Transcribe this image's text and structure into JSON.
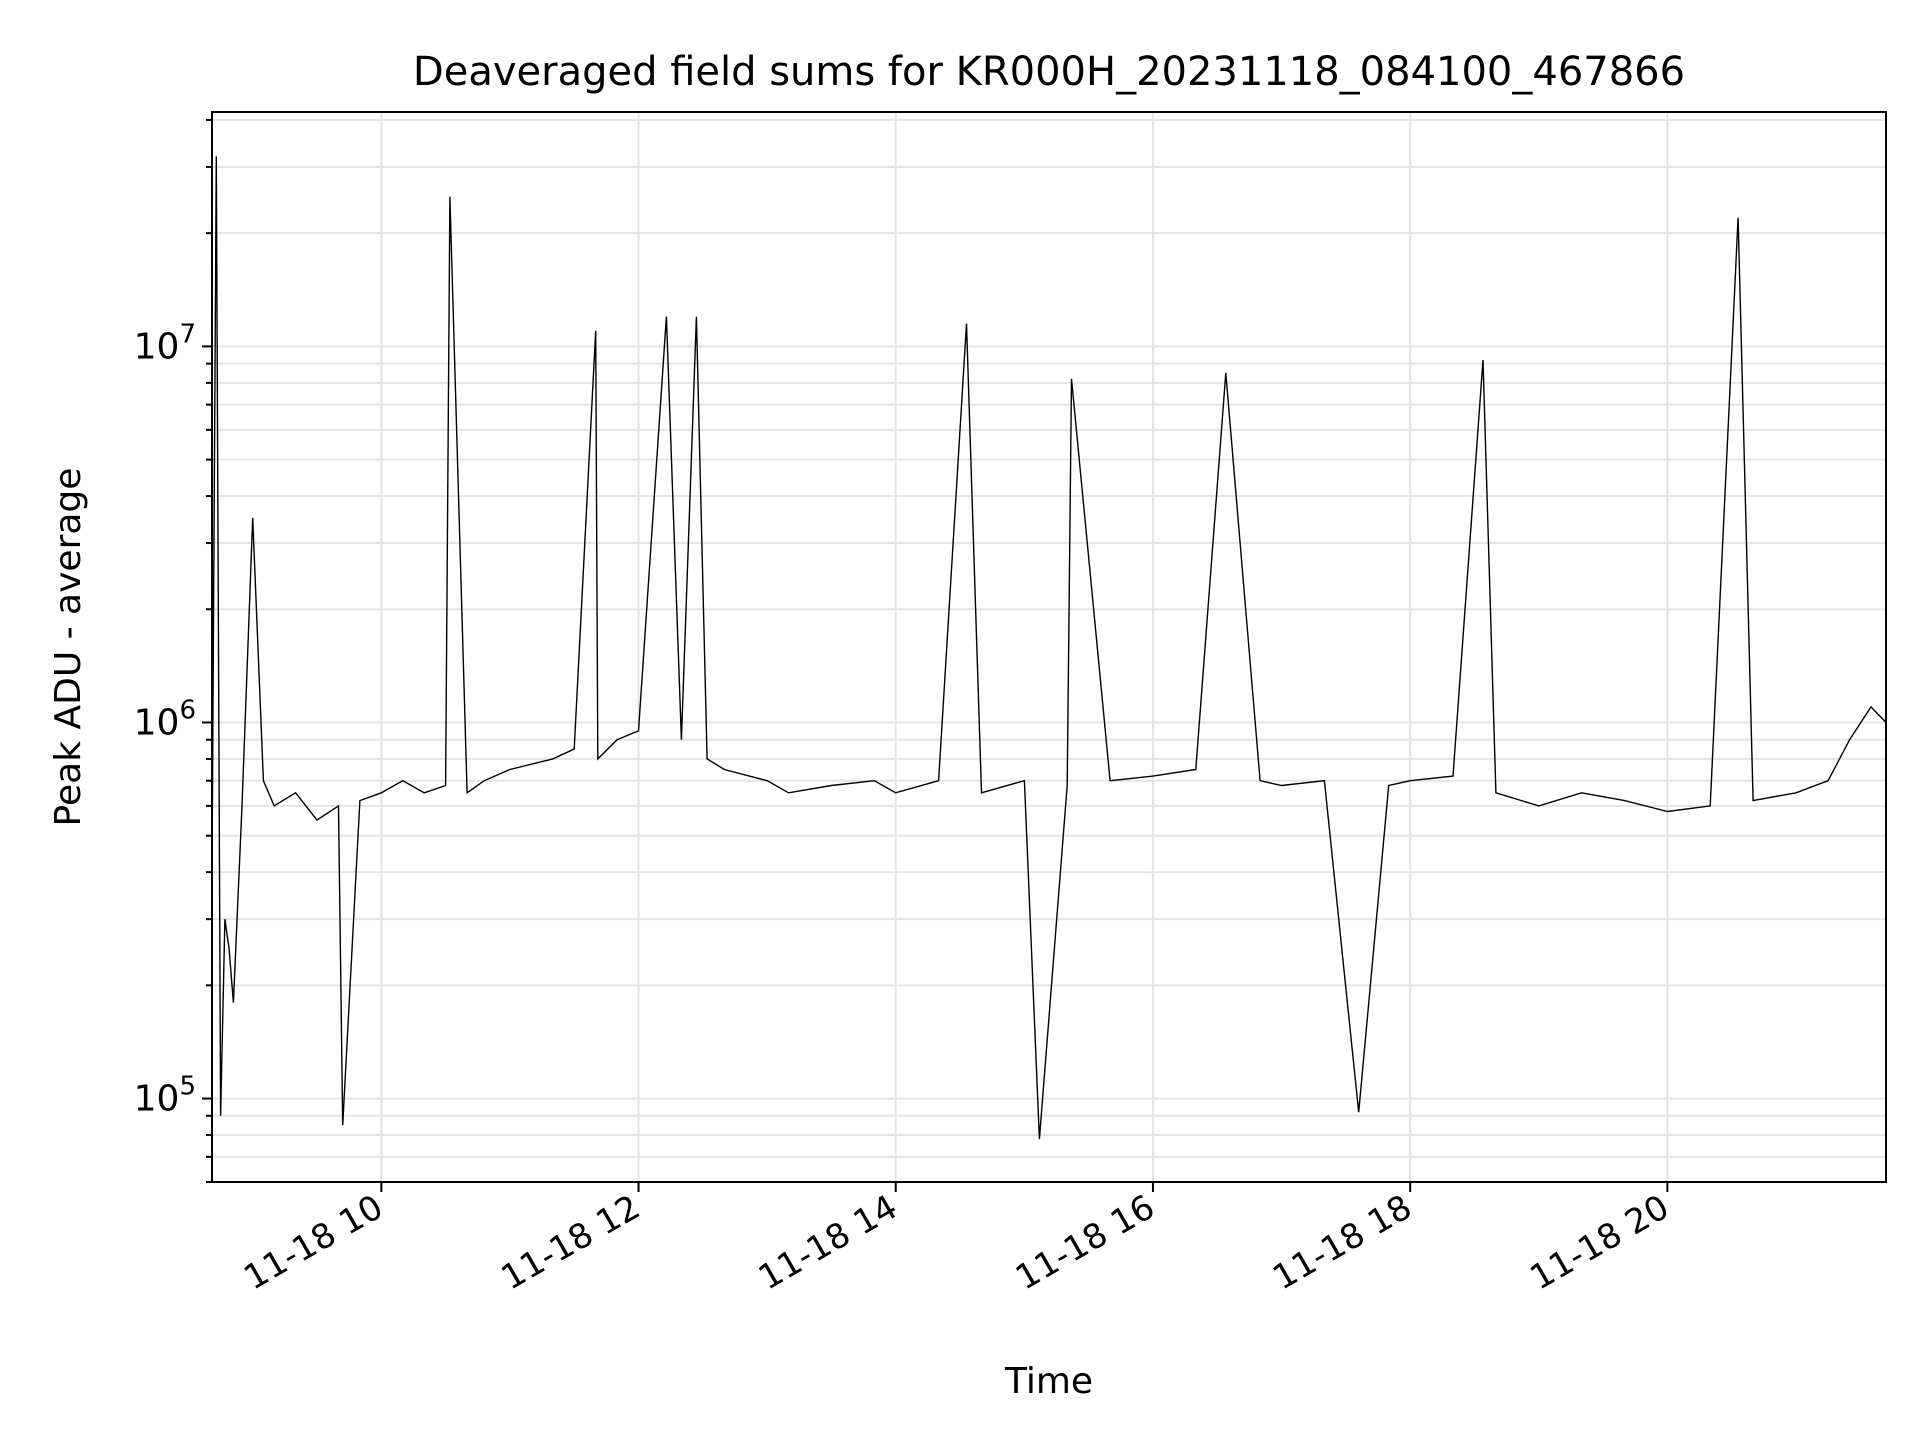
{
  "chart_data": {
    "type": "line",
    "title": "Deaveraged field sums for KR000H_20231118_084100_467866",
    "xlabel": "Time",
    "ylabel": "Peak ADU - average",
    "yscale": "log",
    "xlim": [
      "2023-11-18 08:41",
      "2023-11-18 21:42"
    ],
    "ylim": [
      60000,
      42000000
    ],
    "grid": true,
    "line_color": "#000000",
    "x_ticks": [
      {
        "value": "2023-11-18 10:00",
        "label": "11-18 10"
      },
      {
        "value": "2023-11-18 12:00",
        "label": "11-18 12"
      },
      {
        "value": "2023-11-18 14:00",
        "label": "11-18 14"
      },
      {
        "value": "2023-11-18 16:00",
        "label": "11-18 16"
      },
      {
        "value": "2023-11-18 18:00",
        "label": "11-18 18"
      },
      {
        "value": "2023-11-18 20:00",
        "label": "11-18 20"
      }
    ],
    "y_ticks": [
      {
        "value": 100000,
        "base": "10",
        "exp": "5"
      },
      {
        "value": 1000000,
        "base": "10",
        "exp": "6"
      },
      {
        "value": 10000000,
        "base": "10",
        "exp": "7"
      }
    ],
    "series": [
      {
        "x": [
          "2023-11-18 08:41",
          "2023-11-18 08:43",
          "2023-11-18 08:45",
          "2023-11-18 08:47",
          "2023-11-18 08:49",
          "2023-11-18 08:51",
          "2023-11-18 08:55",
          "2023-11-18 09:00",
          "2023-11-18 09:05",
          "2023-11-18 09:10",
          "2023-11-18 09:20",
          "2023-11-18 09:30",
          "2023-11-18 09:40",
          "2023-11-18 09:42",
          "2023-11-18 09:50",
          "2023-11-18 10:00",
          "2023-11-18 10:10",
          "2023-11-18 10:20",
          "2023-11-18 10:30",
          "2023-11-18 10:32",
          "2023-11-18 10:40",
          "2023-11-18 10:48",
          "2023-11-18 11:00",
          "2023-11-18 11:20",
          "2023-11-18 11:30",
          "2023-11-18 11:40",
          "2023-11-18 11:41",
          "2023-11-18 11:50",
          "2023-11-18 12:00",
          "2023-11-18 12:13",
          "2023-11-18 12:20",
          "2023-11-18 12:27",
          "2023-11-18 12:32",
          "2023-11-18 12:40",
          "2023-11-18 13:00",
          "2023-11-18 13:10",
          "2023-11-18 13:30",
          "2023-11-18 13:50",
          "2023-11-18 14:00",
          "2023-11-18 14:20",
          "2023-11-18 14:33",
          "2023-11-18 14:40",
          "2023-11-18 15:00",
          "2023-11-18 15:07",
          "2023-11-18 15:20",
          "2023-11-18 15:22",
          "2023-11-18 15:40",
          "2023-11-18 16:00",
          "2023-11-18 16:20",
          "2023-11-18 16:34",
          "2023-11-18 16:50",
          "2023-11-18 17:00",
          "2023-11-18 17:20",
          "2023-11-18 17:36",
          "2023-11-18 17:50",
          "2023-11-18 18:00",
          "2023-11-18 18:20",
          "2023-11-18 18:34",
          "2023-11-18 18:40",
          "2023-11-18 19:00",
          "2023-11-18 19:20",
          "2023-11-18 19:40",
          "2023-11-18 20:00",
          "2023-11-18 20:20",
          "2023-11-18 20:33",
          "2023-11-18 20:40",
          "2023-11-18 21:00",
          "2023-11-18 21:15",
          "2023-11-18 21:25",
          "2023-11-18 21:35",
          "2023-11-18 21:42"
        ],
        "y": [
          400000,
          32000000,
          90000,
          300000,
          250000,
          180000,
          600000,
          3500000,
          700000,
          600000,
          650000,
          550000,
          600000,
          85000,
          620000,
          650000,
          700000,
          650000,
          680000,
          25000000,
          650000,
          700000,
          750000,
          800000,
          850000,
          11000000,
          800000,
          900000,
          950000,
          12000000,
          900000,
          12000000,
          800000,
          750000,
          700000,
          650000,
          680000,
          700000,
          650000,
          700000,
          11500000,
          650000,
          700000,
          78000,
          680000,
          8200000,
          700000,
          720000,
          750000,
          8500000,
          700000,
          680000,
          700000,
          92000,
          680000,
          700000,
          720000,
          9200000,
          650000,
          600000,
          650000,
          620000,
          580000,
          600000,
          22000000,
          620000,
          650000,
          700000,
          900000,
          1100000,
          1000000
        ]
      }
    ]
  }
}
